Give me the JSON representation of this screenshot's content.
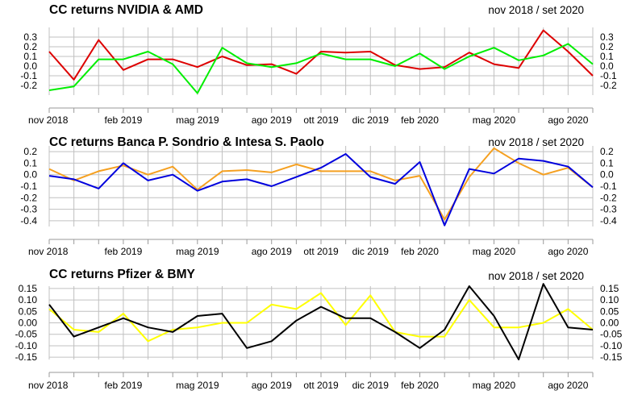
{
  "chart_data": [
    {
      "type": "line",
      "title": "CC returns NVIDIA & AMD",
      "subtitle": "nov 2018 / set 2020",
      "ylim": [
        -0.3,
        0.4
      ],
      "yticks": [
        0.3,
        0.2,
        0.1,
        0.0,
        -0.1,
        -0.2
      ],
      "ytick_labels": [
        "0.3",
        "0.2",
        "0.1",
        "0.0",
        "-0.1",
        "-0.2"
      ],
      "x_tick_labels": [
        "nov 2018",
        "feb 2019",
        "mag 2019",
        "ago 2019",
        "ott 2019",
        "dic 2019",
        "feb 2020",
        "mag 2020",
        "ago 2020"
      ],
      "grid": true,
      "series": [
        {
          "color": "#dd0000",
          "values": [
            0.15,
            -0.14,
            0.27,
            -0.04,
            0.07,
            0.07,
            -0.01,
            0.1,
            0.01,
            0.02,
            -0.08,
            0.15,
            0.14,
            0.15,
            0.01,
            -0.03,
            -0.01,
            0.14,
            0.02,
            -0.02,
            0.37,
            0.15,
            -0.1
          ]
        },
        {
          "color": "#00ee00",
          "values": [
            -0.25,
            -0.21,
            0.07,
            0.07,
            0.15,
            0.02,
            -0.28,
            0.19,
            0.03,
            -0.01,
            0.03,
            0.13,
            0.07,
            0.07,
            0.0,
            0.13,
            -0.03,
            0.1,
            0.19,
            0.06,
            0.11,
            0.23,
            0.02
          ]
        }
      ]
    },
    {
      "type": "line",
      "title": "CC returns Banca P. Sondrio & Intesa S. Paolo",
      "subtitle": "nov 2018 / set 2020",
      "ylim": [
        -0.45,
        0.25
      ],
      "yticks": [
        0.2,
        0.1,
        0.0,
        -0.1,
        -0.2,
        -0.3,
        -0.4
      ],
      "ytick_labels": [
        "0.2",
        "0.1",
        "0.0",
        "-0.1",
        "-0.2",
        "-0.3",
        "-0.4"
      ],
      "x_tick_labels": [
        "nov 2018",
        "feb 2019",
        "mag 2019",
        "ago 2019",
        "ott 2019",
        "dic 2019",
        "feb 2020",
        "mag 2020",
        "ago 2020"
      ],
      "grid": true,
      "series": [
        {
          "color": "#f5a020",
          "values": [
            0.05,
            -0.05,
            0.03,
            0.08,
            0.0,
            0.07,
            -0.13,
            0.03,
            0.04,
            0.02,
            0.09,
            0.03,
            0.03,
            0.03,
            -0.05,
            -0.01,
            -0.39,
            -0.02,
            0.23,
            0.1,
            0.0,
            0.06,
            -0.11
          ]
        },
        {
          "color": "#0000dd",
          "values": [
            -0.01,
            -0.04,
            -0.12,
            0.1,
            -0.05,
            0.0,
            -0.14,
            -0.06,
            -0.04,
            -0.1,
            -0.02,
            0.06,
            0.18,
            -0.02,
            -0.08,
            0.11,
            -0.44,
            0.05,
            0.01,
            0.14,
            0.12,
            0.07,
            -0.11
          ]
        }
      ]
    },
    {
      "type": "line",
      "title": "CC returns Pfizer & BMY",
      "subtitle": "nov 2018 / set 2020",
      "ylim": [
        -0.16,
        0.16
      ],
      "yticks": [
        0.15,
        0.1,
        0.05,
        0.0,
        -0.05,
        -0.1,
        -0.15
      ],
      "ytick_labels": [
        "0.15",
        "0.10",
        "0.05",
        "0.00",
        "-0.05",
        "-0.10",
        "-0.15"
      ],
      "x_tick_labels": [
        "nov 2018",
        "feb 2019",
        "mag 2019",
        "ago 2019",
        "ott 2019",
        "dic 2019",
        "feb 2020",
        "mag 2020",
        "ago 2020"
      ],
      "grid": true,
      "series": [
        {
          "color": "#ffff00",
          "values": [
            0.06,
            -0.03,
            -0.04,
            0.04,
            -0.08,
            -0.03,
            -0.02,
            0.0,
            0.0,
            0.08,
            0.06,
            0.13,
            -0.01,
            0.12,
            -0.04,
            -0.06,
            -0.06,
            0.1,
            -0.02,
            -0.02,
            0.0,
            0.06,
            -0.03
          ]
        },
        {
          "color": "#000000",
          "values": [
            0.08,
            -0.06,
            -0.02,
            0.02,
            -0.02,
            -0.04,
            0.03,
            0.04,
            -0.11,
            -0.08,
            0.01,
            0.07,
            0.02,
            0.02,
            -0.04,
            -0.11,
            -0.03,
            0.16,
            0.03,
            -0.16,
            0.17,
            -0.02,
            -0.03
          ]
        }
      ]
    }
  ]
}
